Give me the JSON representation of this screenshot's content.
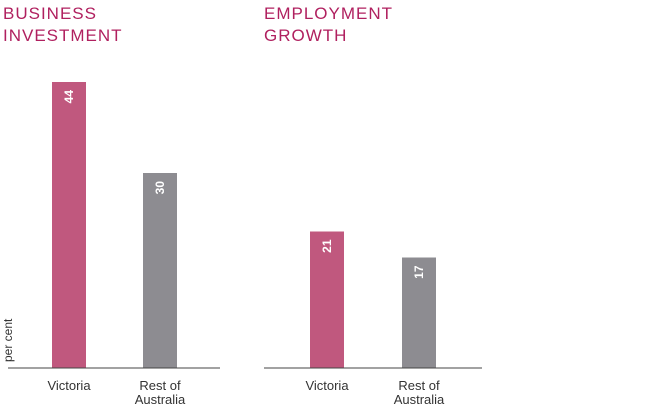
{
  "chart_data": [
    {
      "type": "bar",
      "title": [
        "BUSINESS",
        "INVESTMENT"
      ],
      "ylabel": "per cent",
      "categories": [
        [
          "Victoria"
        ],
        [
          "Rest of",
          "Australia"
        ]
      ],
      "values": [
        44,
        30
      ],
      "value_labels": [
        "44",
        "30"
      ],
      "colors": [
        "#c0587e",
        "#8d8c91"
      ],
      "ylim": [
        0,
        44
      ],
      "grid": false
    },
    {
      "type": "bar",
      "title": [
        "EMPLOYMENT",
        "GROWTH"
      ],
      "ylabel": "",
      "categories": [
        [
          "Victoria"
        ],
        [
          "Rest of",
          "Australia"
        ]
      ],
      "values": [
        21,
        17
      ],
      "value_labels": [
        "21",
        "17"
      ],
      "colors": [
        "#c0587e",
        "#8d8c91"
      ],
      "ylim": [
        0,
        44
      ],
      "grid": false
    }
  ],
  "colors": {
    "title": "#b0205f",
    "victoria": "#c0587e",
    "rest_of_australia": "#8d8c91",
    "axis": "#444444"
  }
}
